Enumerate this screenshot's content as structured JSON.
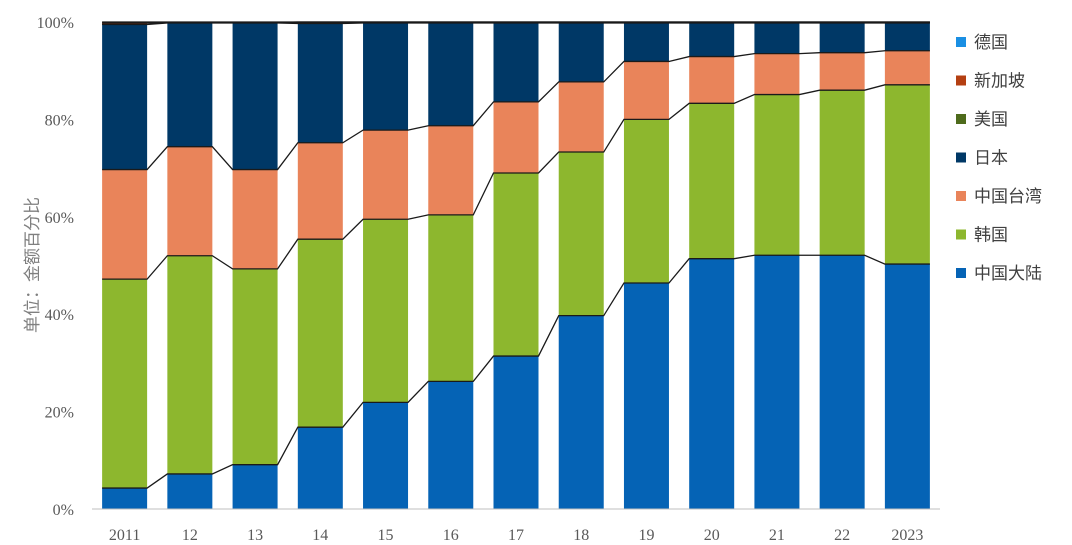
{
  "chart_data": {
    "type": "bar",
    "stacked": true,
    "percent": true,
    "ylabel": "单位：金额百分比",
    "ylim": [
      0,
      100
    ],
    "yticks": [
      "0%",
      "20%",
      "40%",
      "60%",
      "80%",
      "100%"
    ],
    "grid": false,
    "legend_position": "right",
    "categories": [
      "2011",
      "12",
      "13",
      "14",
      "15",
      "16",
      "17",
      "18",
      "19",
      "20",
      "21",
      "22",
      "2023"
    ],
    "series": [
      {
        "name": "中国大陆",
        "color": "#0563B5",
        "values": [
          4.3,
          7.2,
          9.1,
          16.8,
          21.9,
          26.2,
          31.4,
          39.7,
          46.4,
          51.4,
          52.1,
          52.1,
          50.3
        ]
      },
      {
        "name": "韩国",
        "color": "#8DB72E",
        "values": [
          42.9,
          44.8,
          40.2,
          38.6,
          37.6,
          34.2,
          37.6,
          33.6,
          33.6,
          31.9,
          33.0,
          33.9,
          36.8
        ]
      },
      {
        "name": "中国台湾",
        "color": "#E9845A",
        "values": [
          22.5,
          22.4,
          20.4,
          19.8,
          18.3,
          18.3,
          14.6,
          14.4,
          11.9,
          9.6,
          8.4,
          7.7,
          7.0
        ]
      },
      {
        "name": "日本",
        "color": "#003866",
        "values": [
          29.8,
          25.4,
          30.1,
          24.5,
          22.0,
          21.1,
          16.2,
          12.1,
          7.9,
          6.9,
          6.3,
          6.1,
          5.7
        ]
      },
      {
        "name": "美国",
        "color": "#4E6B1C",
        "values": [
          0.1,
          0.1,
          0.1,
          0.1,
          0.1,
          0.1,
          0.1,
          0.1,
          0.1,
          0.1,
          0.1,
          0.1,
          0.1
        ]
      },
      {
        "name": "新加坡",
        "color": "#B43F12",
        "values": [
          0.3,
          0.0,
          0.0,
          0.2,
          0.1,
          0.1,
          0.1,
          0.1,
          0.1,
          0.1,
          0.1,
          0.1,
          0.1
        ]
      },
      {
        "name": "德国",
        "color": "#1A8FE3",
        "values": [
          0.1,
          0.1,
          0.1,
          0.0,
          0.0,
          0.0,
          0.0,
          0.0,
          0.0,
          0.0,
          0.0,
          0.0,
          0.0
        ]
      }
    ]
  }
}
